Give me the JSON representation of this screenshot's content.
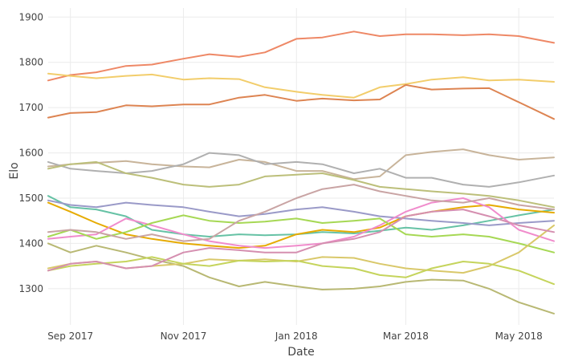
{
  "chart_data": {
    "type": "line",
    "title": "",
    "xlabel": "Date",
    "ylabel": "Elo",
    "xlim": [
      "2017-08-20",
      "2018-05-20"
    ],
    "ylim": [
      1220,
      1920
    ],
    "grid": true,
    "legend": "none",
    "x_ticks": [
      {
        "date": "2017-09-01",
        "label": "Sep 2017"
      },
      {
        "date": "2017-11-01",
        "label": "Nov 2017"
      },
      {
        "date": "2018-01-01",
        "label": "Jan 2018"
      },
      {
        "date": "2018-03-01",
        "label": "Mar 2018"
      },
      {
        "date": "2018-05-01",
        "label": "May 2018"
      }
    ],
    "y_ticks": [
      1300,
      1400,
      1500,
      1600,
      1700,
      1800,
      1900
    ],
    "x": [
      "2017-08-20",
      "2017-09-01",
      "2017-09-15",
      "2017-10-01",
      "2017-10-15",
      "2017-11-01",
      "2017-11-15",
      "2017-12-01",
      "2017-12-15",
      "2018-01-01",
      "2018-01-15",
      "2018-02-01",
      "2018-02-15",
      "2018-03-01",
      "2018-03-15",
      "2018-04-01",
      "2018-04-15",
      "2018-05-01",
      "2018-05-20"
    ],
    "series": [
      {
        "color": "#ee8866",
        "values": [
          1760,
          1772,
          1778,
          1792,
          1795,
          1808,
          1818,
          1812,
          1822,
          1852,
          1855,
          1868,
          1858,
          1862,
          1862,
          1860,
          1862,
          1858,
          1843
        ]
      },
      {
        "color": "#f2cd6b",
        "values": [
          1775,
          1770,
          1765,
          1770,
          1773,
          1762,
          1765,
          1763,
          1745,
          1735,
          1728,
          1722,
          1745,
          1752,
          1762,
          1767,
          1760,
          1762,
          1757
        ]
      },
      {
        "color": "#dd8452",
        "values": [
          1678,
          1688,
          1690,
          1705,
          1703,
          1707,
          1707,
          1722,
          1728,
          1715,
          1720,
          1716,
          1718,
          1750,
          1740,
          1742,
          1743,
          1712,
          1675
        ]
      },
      {
        "color": "#c8b49a",
        "values": [
          1570,
          1575,
          1578,
          1582,
          1575,
          1570,
          1568,
          1585,
          1580,
          1560,
          1560,
          1542,
          1548,
          1595,
          1602,
          1608,
          1595,
          1585,
          1590
        ]
      },
      {
        "color": "#b0b0b0",
        "values": [
          1580,
          1565,
          1560,
          1555,
          1560,
          1575,
          1600,
          1595,
          1575,
          1580,
          1575,
          1555,
          1565,
          1545,
          1545,
          1530,
          1525,
          1535,
          1550
        ]
      },
      {
        "color": "#bcbf7a",
        "values": [
          1565,
          1575,
          1580,
          1555,
          1545,
          1530,
          1525,
          1530,
          1548,
          1552,
          1555,
          1540,
          1525,
          1520,
          1515,
          1510,
          1505,
          1495,
          1480
        ]
      },
      {
        "color": "#66c2a5",
        "values": [
          1505,
          1480,
          1475,
          1460,
          1430,
          1420,
          1415,
          1420,
          1418,
          1420,
          1425,
          1422,
          1428,
          1435,
          1430,
          1440,
          1450,
          1462,
          1475
        ]
      },
      {
        "color": "#e6ab02",
        "values": [
          1490,
          1470,
          1445,
          1420,
          1410,
          1400,
          1395,
          1390,
          1395,
          1420,
          1430,
          1425,
          1435,
          1460,
          1470,
          1480,
          1485,
          1475,
          1468
        ]
      },
      {
        "color": "#9a9ac8",
        "values": [
          1495,
          1485,
          1480,
          1490,
          1485,
          1480,
          1470,
          1460,
          1465,
          1475,
          1480,
          1470,
          1460,
          1455,
          1450,
          1445,
          1440,
          1445,
          1450
        ]
      },
      {
        "color": "#f08ccc",
        "values": [
          1410,
          1415,
          1420,
          1455,
          1440,
          1420,
          1405,
          1395,
          1390,
          1395,
          1400,
          1415,
          1440,
          1470,
          1490,
          1500,
          1480,
          1430,
          1405
        ]
      },
      {
        "color": "#a6d854",
        "values": [
          1415,
          1430,
          1410,
          1425,
          1445,
          1462,
          1450,
          1445,
          1448,
          1455,
          1445,
          1450,
          1455,
          1420,
          1415,
          1420,
          1415,
          1400,
          1380
        ]
      },
      {
        "color": "#b8b873",
        "values": [
          1400,
          1380,
          1395,
          1380,
          1365,
          1350,
          1325,
          1305,
          1315,
          1305,
          1298,
          1300,
          1305,
          1315,
          1320,
          1318,
          1300,
          1270,
          1245
        ]
      },
      {
        "color": "#d9c86a",
        "values": [
          1345,
          1355,
          1360,
          1345,
          1350,
          1355,
          1365,
          1362,
          1365,
          1360,
          1370,
          1368,
          1355,
          1345,
          1340,
          1335,
          1350,
          1380,
          1440
        ]
      },
      {
        "color": "#c5d45c",
        "values": [
          1340,
          1350,
          1355,
          1360,
          1370,
          1355,
          1350,
          1362,
          1360,
          1362,
          1350,
          1345,
          1330,
          1325,
          1345,
          1360,
          1355,
          1340,
          1310
        ]
      },
      {
        "color": "#d58fb0",
        "values": [
          1340,
          1355,
          1360,
          1345,
          1350,
          1380,
          1390,
          1385,
          1380,
          1380,
          1400,
          1410,
          1425,
          1460,
          1470,
          1475,
          1460,
          1440,
          1425
        ]
      },
      {
        "color": "#c9a4a4",
        "values": [
          1425,
          1430,
          1425,
          1410,
          1420,
          1405,
          1410,
          1450,
          1470,
          1500,
          1520,
          1530,
          1515,
          1505,
          1495,
          1490,
          1500,
          1485,
          1475
        ]
      }
    ]
  }
}
